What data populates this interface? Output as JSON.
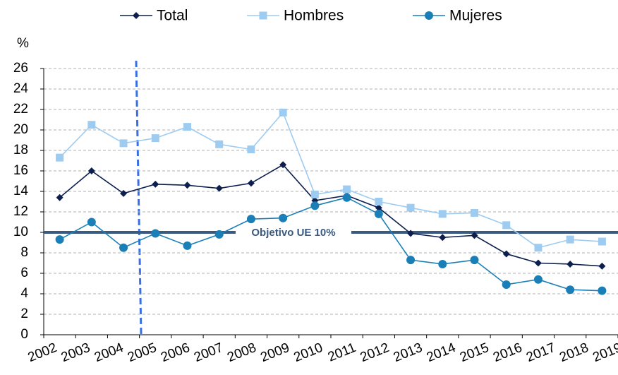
{
  "chart_data": {
    "type": "line",
    "y_label": "%",
    "categories": [
      "2002",
      "2003",
      "2004",
      "2005",
      "2006",
      "2007",
      "2008",
      "2009",
      "2010",
      "2011",
      "2012",
      "2013",
      "2014",
      "2015",
      "2016",
      "2017",
      "2018",
      "2019"
    ],
    "series": [
      {
        "name": "Total",
        "color": "#0d1f4f",
        "marker": "diamond",
        "values": [
          13.4,
          16.0,
          13.8,
          14.7,
          14.6,
          14.3,
          14.8,
          16.6,
          13.1,
          13.6,
          12.4,
          9.9,
          9.5,
          9.7,
          7.9,
          7.0,
          6.9,
          6.7
        ]
      },
      {
        "name": "Hombres",
        "color": "#9ecbf0",
        "marker": "square",
        "values": [
          17.3,
          20.5,
          18.7,
          19.2,
          20.3,
          18.6,
          18.1,
          21.7,
          13.7,
          14.2,
          13.0,
          12.4,
          11.8,
          11.9,
          10.7,
          8.5,
          9.3,
          9.1
        ]
      },
      {
        "name": "Mujeres",
        "color": "#1a7fb6",
        "marker": "circle",
        "values": [
          9.3,
          11.0,
          8.5,
          9.9,
          8.7,
          9.8,
          11.3,
          11.4,
          12.6,
          13.4,
          11.8,
          7.3,
          6.9,
          7.3,
          4.9,
          5.4,
          4.4,
          4.3
        ]
      }
    ],
    "target": {
      "value": 10,
      "label": "Objetivo UE 10%",
      "color": "#3a5a80"
    },
    "ylim": [
      0,
      26
    ],
    "yticks": [
      0,
      2,
      4,
      6,
      8,
      10,
      12,
      14,
      16,
      18,
      20,
      22,
      24,
      26
    ],
    "grid": true,
    "legend": "top"
  }
}
